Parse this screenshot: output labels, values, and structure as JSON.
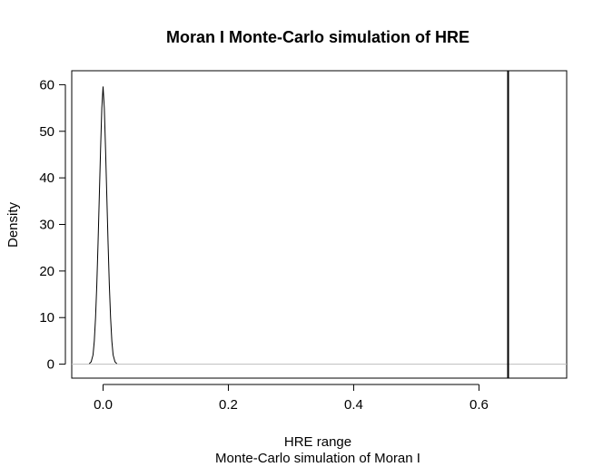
{
  "chart_data": {
    "type": "line",
    "title": "Moran I Monte-Carlo simulation of HRE",
    "xlabel": "HRE range",
    "subtitle": "Monte-Carlo simulation of Moran I",
    "ylabel": "Density",
    "xlim": [
      -0.05,
      0.74
    ],
    "ylim": [
      -3,
      63
    ],
    "x_ticks": [
      0.0,
      0.2,
      0.4,
      0.6
    ],
    "x_tick_labels": [
      "0.0",
      "0.2",
      "0.4",
      "0.6"
    ],
    "y_ticks": [
      0,
      10,
      20,
      30,
      40,
      50,
      60
    ],
    "y_tick_labels": [
      "0",
      "10",
      "20",
      "30",
      "40",
      "50",
      "60"
    ],
    "series": [
      {
        "x": [
          -0.022,
          -0.019,
          -0.016,
          -0.014,
          -0.012,
          -0.01,
          -0.008,
          -0.006,
          -0.004,
          -0.002,
          0.0,
          0.002,
          0.004,
          0.006,
          0.008,
          0.01,
          0.012,
          0.014,
          0.016,
          0.019,
          0.022
        ],
        "y": [
          0.1,
          0.5,
          2,
          5,
          10,
          17,
          26,
          36,
          46,
          55,
          59.6,
          55,
          46,
          36,
          26,
          17,
          10,
          5,
          2,
          0.5,
          0.1
        ]
      }
    ],
    "baseline": 0,
    "observed_value": 0.6465,
    "grid": false,
    "legend": "none"
  }
}
